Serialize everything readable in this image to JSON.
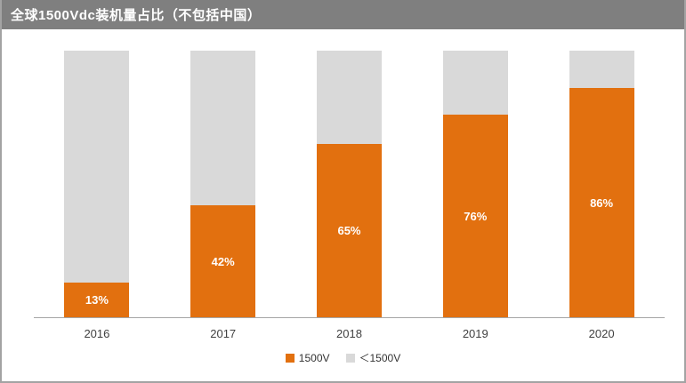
{
  "title_bar": {
    "title": "全球1500Vdc装机量占比（不包括中国）",
    "background": "#7f7f7f",
    "text_color": "#ffffff"
  },
  "chart_data": {
    "type": "bar",
    "subtype": "stacked-100-percent",
    "title": "全球1500Vdc装机量占比（不包括中国）",
    "categories": [
      "2016",
      "2017",
      "2018",
      "2019",
      "2020"
    ],
    "series": [
      {
        "name": "1500V",
        "color": "#e2700f",
        "values": [
          13,
          42,
          65,
          76,
          86
        ],
        "data_labels": [
          "13%",
          "42%",
          "65%",
          "76%",
          "86%"
        ]
      },
      {
        "name": "＜1500V",
        "color": "#d9d9d9",
        "values": [
          87,
          58,
          35,
          24,
          14
        ],
        "data_labels": []
      }
    ],
    "ylim": [
      0,
      100
    ],
    "grid": false,
    "y_axis_visible": false,
    "axis_line_color": "#a6a6a6",
    "legend_position": "bottom",
    "xlabel": "",
    "ylabel": ""
  },
  "legend": {
    "items": [
      {
        "label": "1500V",
        "color": "#e2700f"
      },
      {
        "label": "＜1500V",
        "color": "#d9d9d9"
      }
    ]
  }
}
